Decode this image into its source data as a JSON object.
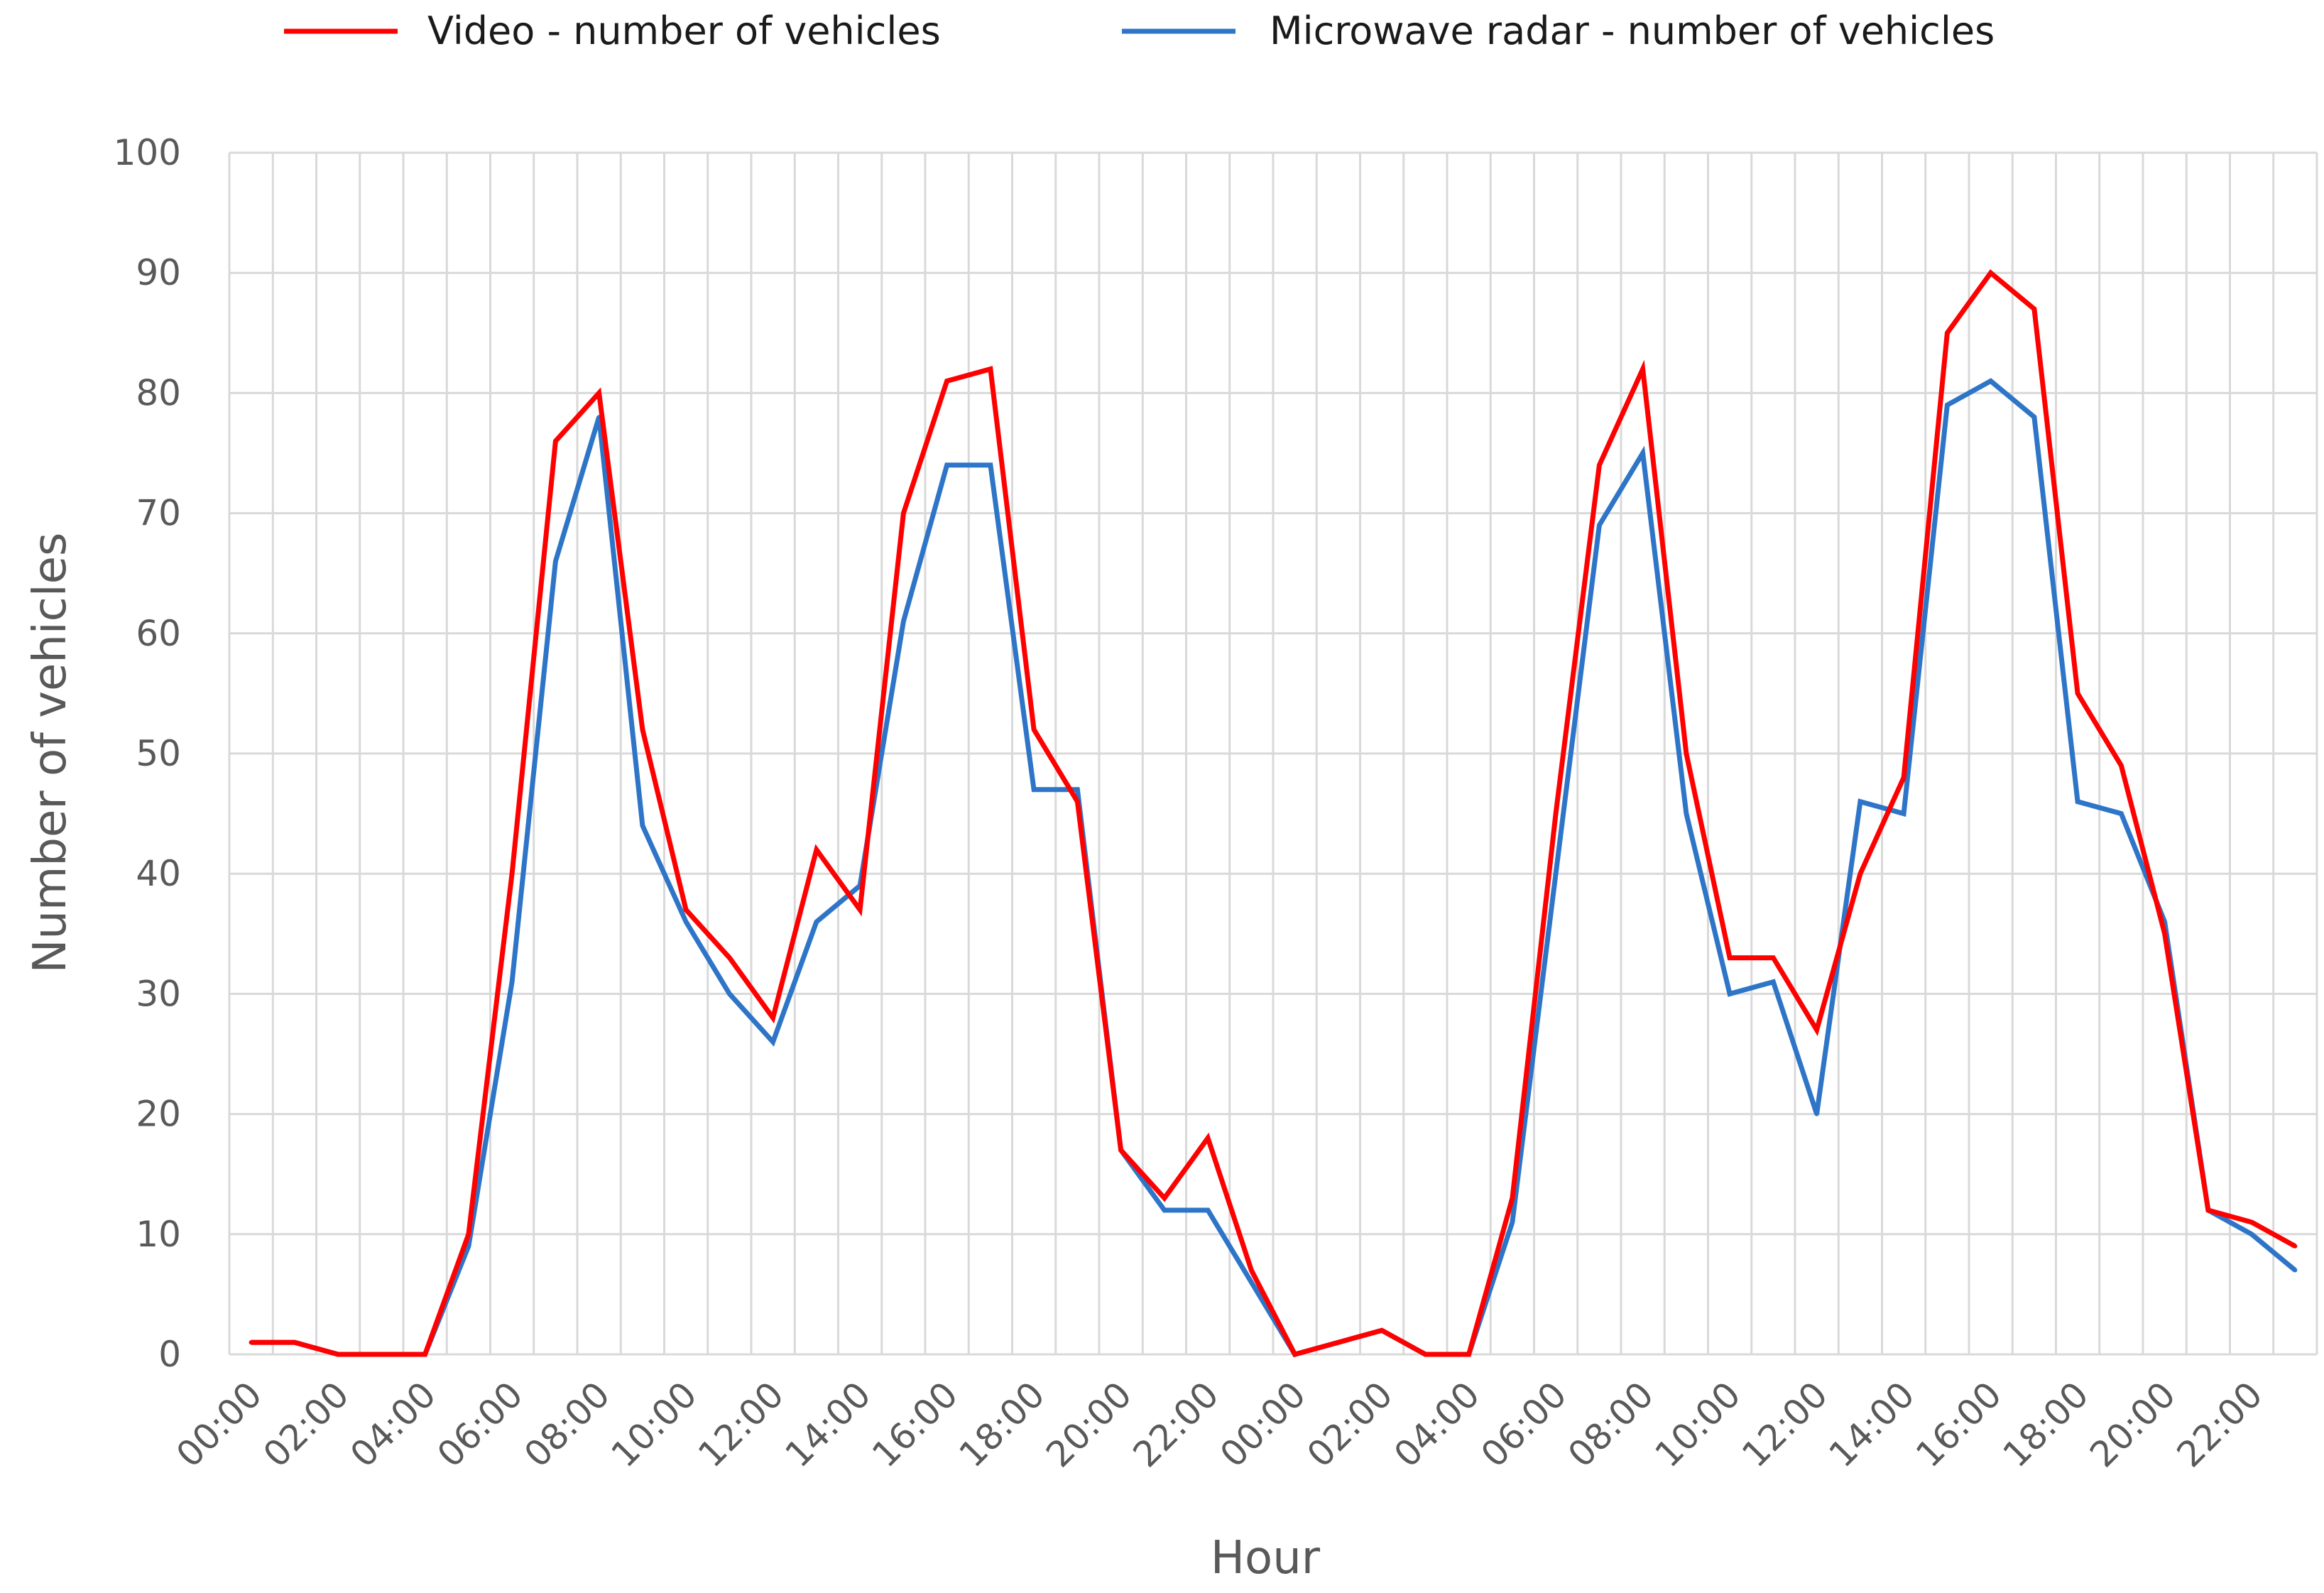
{
  "chart_data": {
    "type": "line",
    "xlabel": "Hour",
    "ylabel": "Number of vehicles",
    "ylim": [
      0,
      100
    ],
    "y_ticks": [
      0,
      10,
      20,
      30,
      40,
      50,
      60,
      70,
      80,
      90,
      100
    ],
    "grid": true,
    "legend_position": "top",
    "x": [
      "00:00",
      "01:00",
      "02:00",
      "03:00",
      "04:00",
      "05:00",
      "06:00",
      "07:00",
      "08:00",
      "09:00",
      "10:00",
      "11:00",
      "12:00",
      "13:00",
      "14:00",
      "15:00",
      "16:00",
      "17:00",
      "18:00",
      "19:00",
      "20:00",
      "21:00",
      "22:00",
      "23:00",
      "00:00",
      "01:00",
      "02:00",
      "03:00",
      "04:00",
      "05:00",
      "06:00",
      "07:00",
      "08:00",
      "09:00",
      "10:00",
      "11:00",
      "12:00",
      "13:00",
      "14:00",
      "15:00",
      "16:00",
      "17:00",
      "18:00",
      "19:00",
      "20:00",
      "21:00",
      "22:00",
      "23:00"
    ],
    "x_tick_labels": [
      "00:00",
      "02:00",
      "04:00",
      "06:00",
      "08:00",
      "10:00",
      "12:00",
      "14:00",
      "16:00",
      "18:00",
      "20:00",
      "22:00",
      "00:00",
      "02:00",
      "04:00",
      "06:00",
      "08:00",
      "10:00",
      "12:00",
      "14:00",
      "16:00",
      "18:00",
      "20:00",
      "22:00"
    ],
    "series": [
      {
        "name": "Video - number of vehicles",
        "color": "#ff0000",
        "values": [
          1,
          1,
          0,
          0,
          0,
          10,
          40,
          76,
          80,
          52,
          37,
          33,
          28,
          42,
          37,
          70,
          81,
          82,
          52,
          46,
          17,
          13,
          18,
          7,
          0,
          1,
          2,
          0,
          0,
          13,
          45,
          74,
          82,
          50,
          33,
          33,
          27,
          40,
          48,
          85,
          90,
          87,
          55,
          49,
          35,
          12,
          11,
          9
        ]
      },
      {
        "name": "Microwave radar - number of vehicles",
        "color": "#2e75c8",
        "values": [
          1,
          1,
          0,
          0,
          0,
          9,
          31,
          66,
          78,
          44,
          36,
          30,
          26,
          36,
          39,
          61,
          74,
          74,
          47,
          47,
          17,
          12,
          12,
          6,
          0,
          1,
          2,
          0,
          0,
          11,
          40,
          69,
          75,
          45,
          30,
          31,
          20,
          46,
          45,
          79,
          81,
          78,
          46,
          45,
          36,
          12,
          10,
          7
        ]
      }
    ]
  }
}
